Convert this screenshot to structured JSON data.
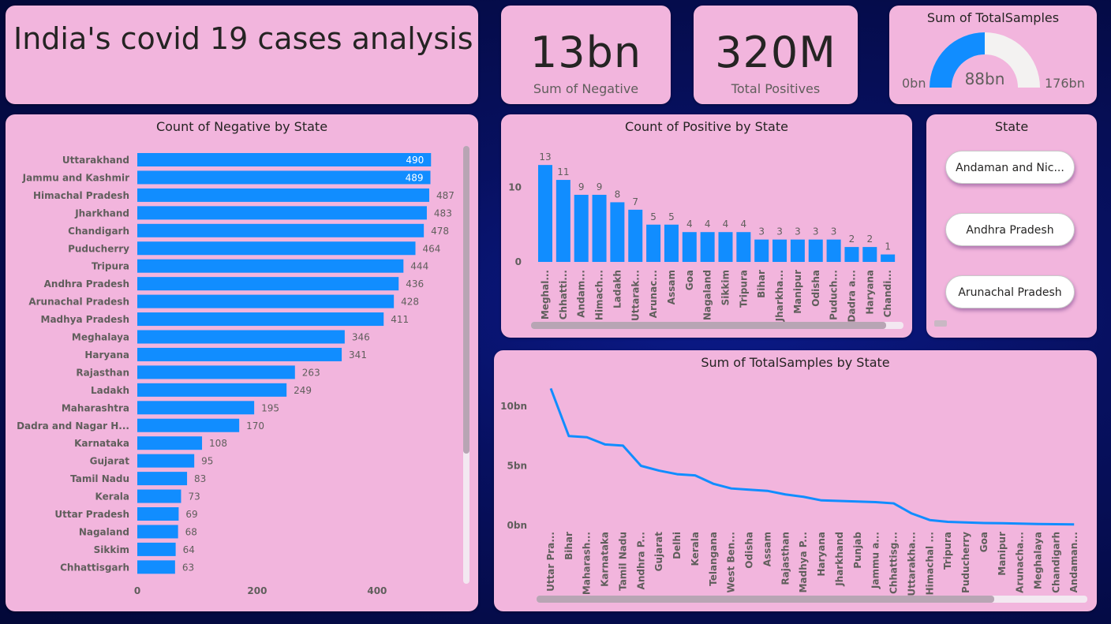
{
  "title": "India's covid 19 cases analysis",
  "kpi_negative": {
    "value": "13bn",
    "label": "Sum of Negative"
  },
  "kpi_positive": {
    "value": "320M",
    "label": "Total Positives"
  },
  "gauge": {
    "title": "Sum of TotalSamples",
    "min": "0bn",
    "max": "176bn",
    "value_label": "88bn",
    "fraction": 0.5
  },
  "slicer": {
    "title": "State",
    "items": [
      "Andaman and Nic...",
      "Andhra Pradesh",
      "Arunachal Pradesh"
    ]
  },
  "colors": {
    "bar": "#118dff",
    "card": "#f2b5dd",
    "gauge_empty": "#f3f2f1"
  },
  "chart_data": [
    {
      "type": "bar",
      "orientation": "horizontal",
      "title": "Count of Negative by State",
      "categories": [
        "Uttarakhand",
        "Jammu and Kashmir",
        "Himachal Pradesh",
        "Jharkhand",
        "Chandigarh",
        "Puducherry",
        "Tripura",
        "Andhra Pradesh",
        "Arunachal Pradesh",
        "Madhya Pradesh",
        "Meghalaya",
        "Haryana",
        "Rajasthan",
        "Ladakh",
        "Maharashtra",
        "Dadra and Nagar H...",
        "Karnataka",
        "Gujarat",
        "Tamil Nadu",
        "Kerala",
        "Uttar Pradesh",
        "Nagaland",
        "Sikkim",
        "Chhattisgarh"
      ],
      "values": [
        490,
        489,
        487,
        483,
        478,
        464,
        444,
        436,
        428,
        411,
        346,
        341,
        263,
        249,
        195,
        170,
        108,
        95,
        83,
        73,
        69,
        68,
        64,
        63
      ],
      "xticks": [
        "0",
        "200",
        "400"
      ],
      "xlim": [
        0,
        560
      ]
    },
    {
      "type": "bar",
      "title": "Count of Positive by State",
      "categories": [
        "Meghal...",
        "Chhatti...",
        "Andam...",
        "Himach...",
        "Ladakh",
        "Uttarak...",
        "Arunac...",
        "Assam",
        "Goa",
        "Nagaland",
        "Sikkim",
        "Tripura",
        "Bihar",
        "Jharkha...",
        "Manipur",
        "Odisha",
        "Puduch...",
        "Dadra a...",
        "Haryana",
        "Chandi..."
      ],
      "values": [
        13,
        11,
        9,
        9,
        8,
        7,
        5,
        5,
        4,
        4,
        4,
        4,
        3,
        3,
        3,
        3,
        3,
        2,
        2,
        1
      ],
      "yticks": [
        "0",
        "10"
      ],
      "ylim": [
        0,
        15
      ]
    },
    {
      "type": "line",
      "title": "Sum of TotalSamples by State",
      "categories": [
        "Uttar Pra...",
        "Bihar",
        "Maharash...",
        "Karnataka",
        "Tamil Nadu",
        "Andhra P...",
        "Gujarat",
        "Delhi",
        "Kerala",
        "Telangana",
        "West Ben...",
        "Odisha",
        "Assam",
        "Rajasthan",
        "Madhya P...",
        "Haryana",
        "Jharkhand",
        "Punjab",
        "Jammu a...",
        "Chhattisg...",
        "Uttarakha...",
        "Himachal ...",
        "Tripura",
        "Puducherry",
        "Goa",
        "Manipur",
        "Arunacha...",
        "Meghalaya",
        "Chandigarh",
        "Andaman..."
      ],
      "values": [
        11.5,
        7.5,
        7.4,
        6.8,
        6.7,
        5.0,
        4.6,
        4.3,
        4.2,
        3.5,
        3.1,
        3.0,
        2.9,
        2.6,
        2.4,
        2.1,
        2.05,
        2.0,
        1.95,
        1.85,
        1.0,
        0.45,
        0.3,
        0.25,
        0.2,
        0.18,
        0.15,
        0.12,
        0.1,
        0.08
      ],
      "yticks": [
        "0bn",
        "5bn",
        "10bn"
      ],
      "ylim": [
        0,
        12
      ]
    }
  ]
}
